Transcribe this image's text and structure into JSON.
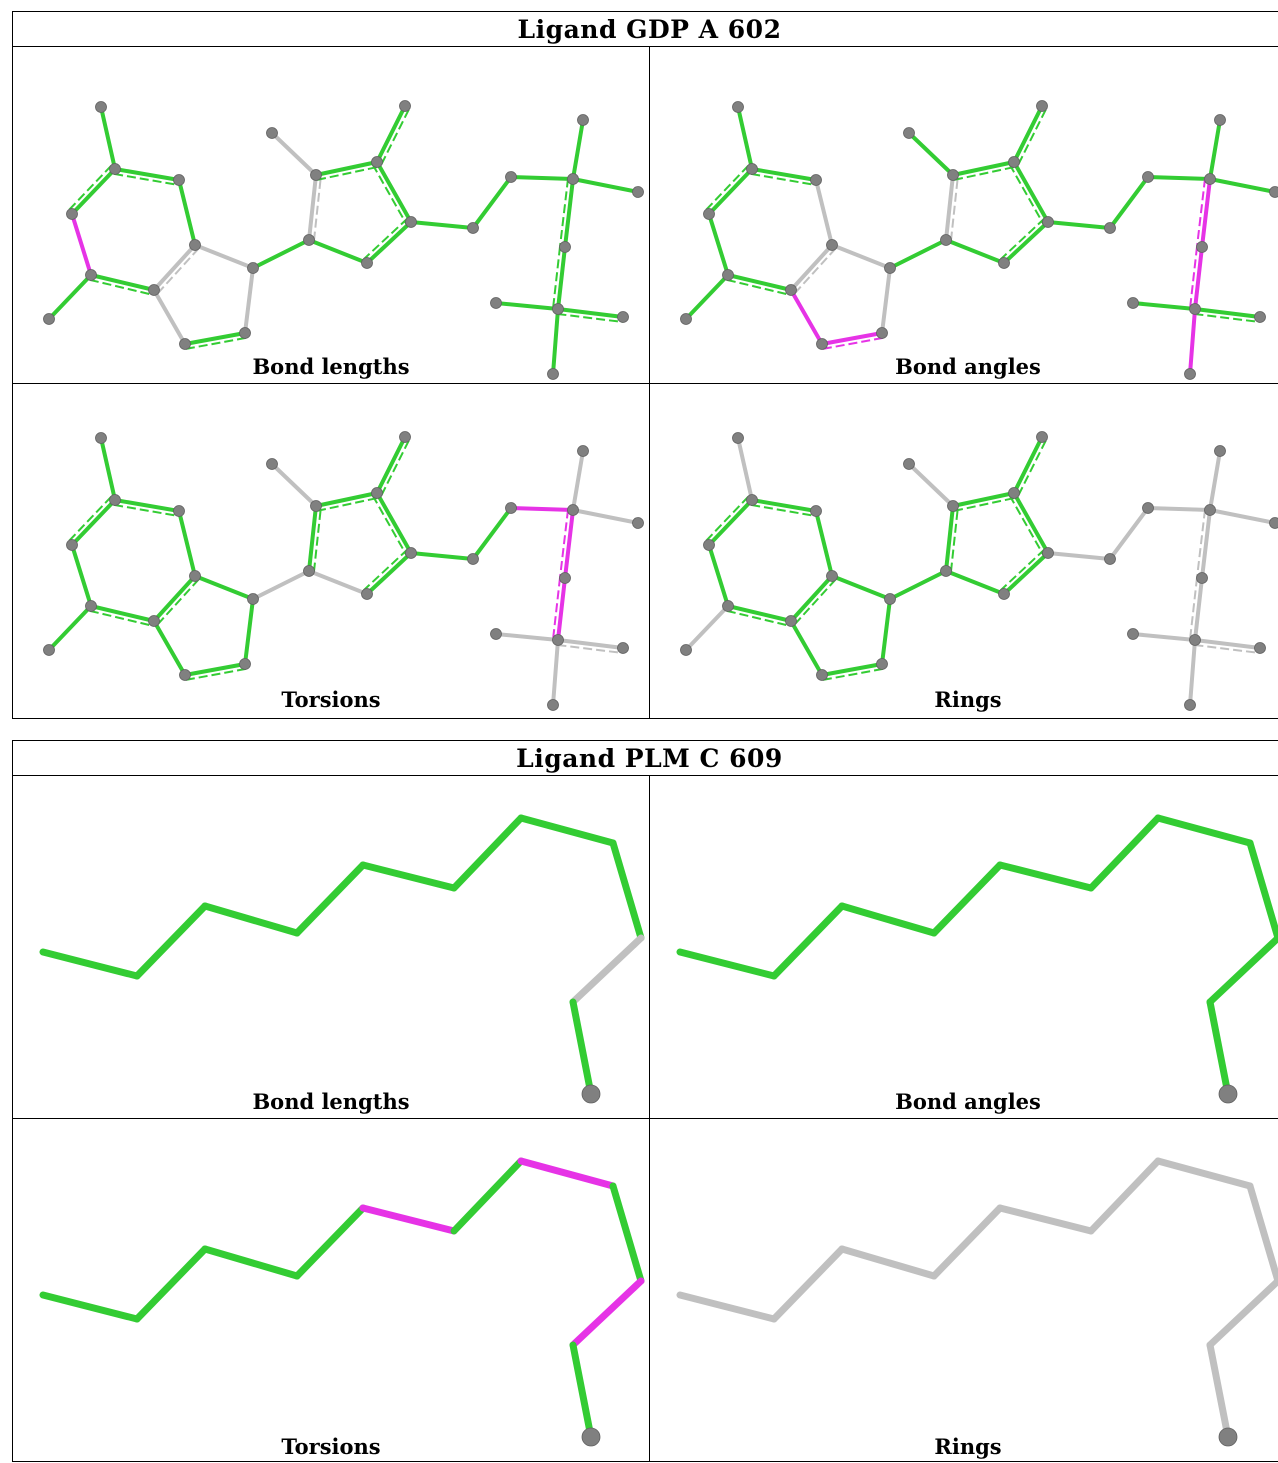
{
  "colors": {
    "ok_bond": "#33cc33",
    "outlier_bond": "#e633e6",
    "neutral_bond": "#c0c0c0",
    "atom": "#808080"
  },
  "ligands": [
    {
      "title": "Ligand GDP A 602",
      "panels": [
        {
          "caption": "Bond lengths"
        },
        {
          "caption": "Bond angles"
        },
        {
          "caption": "Torsions"
        },
        {
          "caption": "Rings"
        }
      ]
    },
    {
      "title": "Ligand PLM C 609",
      "panels": [
        {
          "caption": "Bond lengths"
        },
        {
          "caption": "Bond angles"
        },
        {
          "caption": "Torsions"
        },
        {
          "caption": "Rings"
        }
      ]
    }
  ]
}
